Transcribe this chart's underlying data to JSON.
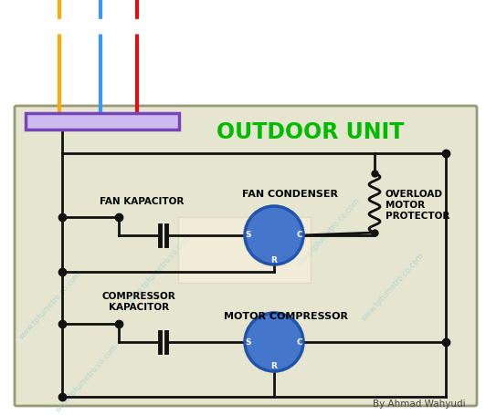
{
  "title": "OUTDOOR UNIT",
  "title_color": "#00bb00",
  "title_fontsize": 17,
  "bg_color_outer": "#ffffff",
  "bg_color_box": "#e5e5d0",
  "box_border_color": "#999977",
  "wire_yellow": "#ffaa00",
  "wire_blue": "#3399ff",
  "wire_red": "#dd1111",
  "terminal_fill": "#ccbbee",
  "terminal_edge": "#7744bb",
  "circuit_color": "#111111",
  "motor_fill": "#4477cc",
  "motor_edge": "#2255aa",
  "watermark_color": "#88cccc",
  "watermark_text": "www.tptumetro.co.com",
  "author": "By Ahmad Wahyudi",
  "label_fan_cap": "FAN KAPACITOR",
  "label_fan_cond": "FAN CONDENSER",
  "label_comp_cap": "COMPRESSOR\nKAPACITOR",
  "label_motor_comp": "MOTOR COMPRESSOR",
  "label_overload": "OVERLOAD\nMOTOR\nPROTECTOR",
  "figsize": [
    5.32,
    4.55
  ],
  "dpi": 100
}
